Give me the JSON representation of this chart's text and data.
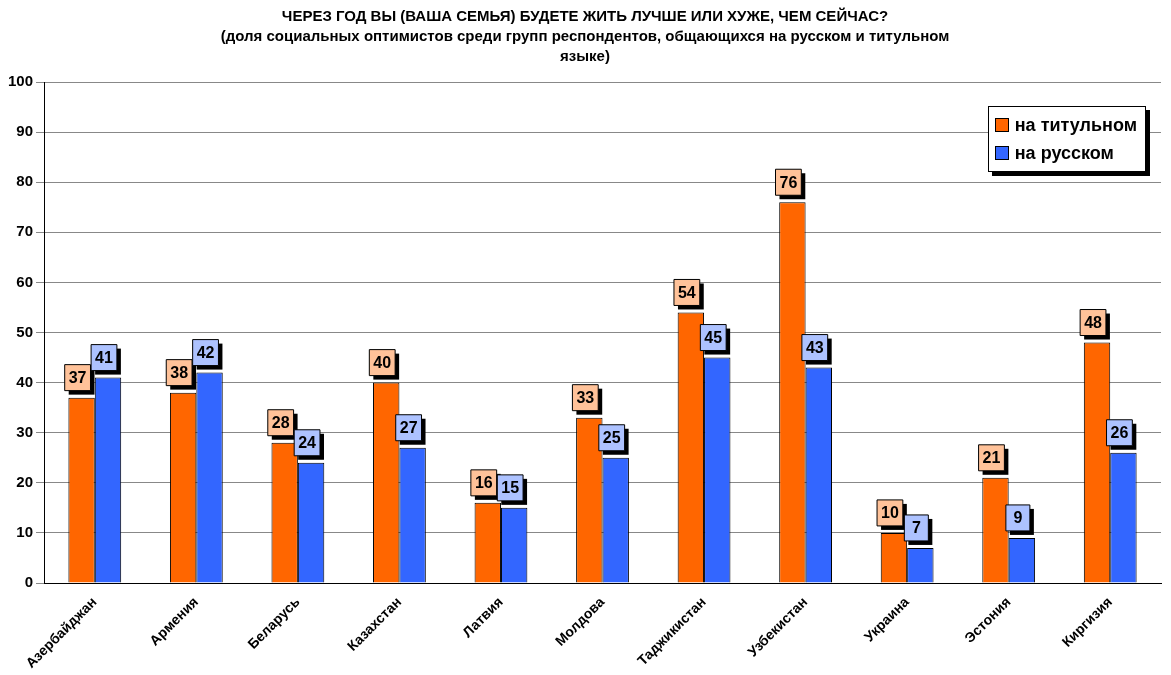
{
  "chart_data": {
    "type": "bar",
    "title": "ЧЕРЕЗ ГОД ВЫ (ВАША СЕМЬЯ) БУДЕТЕ ЖИТЬ ЛУЧШЕ ИЛИ ХУЖЕ, ЧЕМ СЕЙЧАС?",
    "subtitle": "(доля социальных оптимистов среди групп респондентов, общающихся на русском и титульном языке)",
    "categories": [
      "Азербайджан",
      "Армения",
      "Беларусь",
      "Казахстан",
      "Латвия",
      "Молдова",
      "Таджикистан",
      "Узбекистан",
      "Украина",
      "Эстония",
      "Киргизия"
    ],
    "series": [
      {
        "name": "на титульном",
        "color": "#ff6600",
        "values": [
          37,
          38,
          28,
          40,
          16,
          33,
          54,
          76,
          10,
          21,
          48
        ]
      },
      {
        "name": "на русском",
        "color": "#3366ff",
        "values": [
          41,
          42,
          24,
          27,
          15,
          25,
          45,
          43,
          7,
          9,
          26
        ]
      }
    ],
    "ylim": [
      0,
      100
    ],
    "yticks": [
      0,
      10,
      20,
      30,
      40,
      50,
      60,
      70,
      80,
      90,
      100
    ],
    "grid": "y",
    "legend": "top right",
    "data_labels": true
  }
}
